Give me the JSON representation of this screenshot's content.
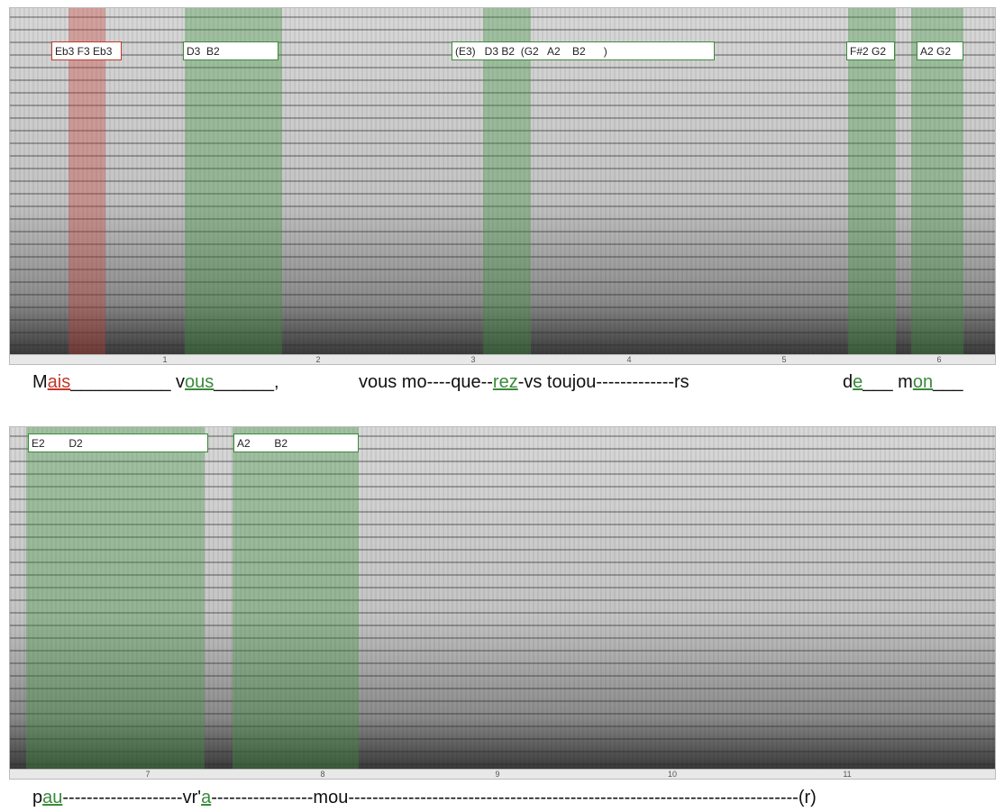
{
  "panels": [
    {
      "notes": [
        {
          "label": "Eb3 F3 Eb3",
          "color": "#c0392b"
        },
        {
          "label": "D3  B2",
          "color": "#3a8a3a"
        },
        {
          "label": "(E3)   D3 B2  (G2   A2    B2      )",
          "color": "#3a8a3a"
        },
        {
          "label": "F#2 G2",
          "color": "#3a8a3a"
        },
        {
          "label": "A2 G2",
          "color": "#3a8a3a"
        }
      ],
      "time_ticks": [
        1,
        2,
        3,
        4,
        5,
        6
      ],
      "lyrics": [
        [
          {
            "text": "M"
          },
          {
            "text": "ais",
            "color": "#c0392b"
          },
          {
            "text": "__________ v"
          },
          {
            "text": "ous",
            "color": "#3a8a3a"
          },
          {
            "text": "______,"
          }
        ],
        [
          {
            "text": "vous mo----que--"
          },
          {
            "text": "rez",
            "color": "#3a8a3a"
          },
          {
            "text": "-vs toujou-------------rs"
          }
        ],
        [
          {
            "text": "d"
          },
          {
            "text": "e",
            "color": "#3a8a3a"
          },
          {
            "text": "___ m"
          },
          {
            "text": "on",
            "color": "#3a8a3a"
          },
          {
            "text": "___"
          }
        ]
      ]
    },
    {
      "notes": [
        {
          "label": "E2        D2",
          "color": "#3a8a3a"
        },
        {
          "label": "A2        B2",
          "color": "#3a8a3a"
        }
      ],
      "time_ticks": [
        7,
        8,
        9,
        10,
        11
      ],
      "lyrics": [
        [
          {
            "text": "p"
          },
          {
            "text": "au",
            "color": "#3a8a3a"
          },
          {
            "text": "--------------------vr'"
          },
          {
            "text": "a",
            "color": "#3a8a3a"
          },
          {
            "text": "-----------------mou---------------------------------------------------------------------------(r)"
          }
        ]
      ]
    }
  ]
}
